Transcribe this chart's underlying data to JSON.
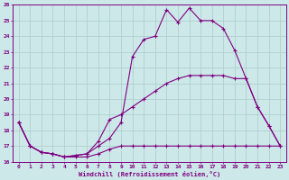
{
  "xlabel": "Windchill (Refroidissement éolien,°C)",
  "background_color": "#cce8e8",
  "line_color": "#800080",
  "grid_color": "#aacccc",
  "xlim": [
    -0.5,
    23.5
  ],
  "ylim": [
    16,
    26
  ],
  "yticks": [
    16,
    17,
    18,
    19,
    20,
    21,
    22,
    23,
    24,
    25,
    26
  ],
  "xticks": [
    0,
    1,
    2,
    3,
    4,
    5,
    6,
    7,
    8,
    9,
    10,
    11,
    12,
    13,
    14,
    15,
    16,
    17,
    18,
    19,
    20,
    21,
    22,
    23
  ],
  "line1_x": [
    0,
    1,
    2,
    3,
    4,
    5,
    6,
    7,
    8,
    9,
    10,
    11,
    12,
    13,
    14,
    15,
    16,
    17,
    18,
    19,
    20,
    21,
    22,
    23
  ],
  "line1_y": [
    18.5,
    17.0,
    16.6,
    16.5,
    16.3,
    16.4,
    16.5,
    17.0,
    17.5,
    18.5,
    22.7,
    23.8,
    24.0,
    25.7,
    24.9,
    25.8,
    25.0,
    25.0,
    24.5,
    23.1,
    21.3,
    19.5,
    18.3,
    17.0
  ],
  "line2_x": [
    0,
    1,
    2,
    3,
    4,
    5,
    6,
    7,
    8,
    9,
    10,
    11,
    12,
    13,
    14,
    15,
    16,
    17,
    18,
    19,
    20,
    21,
    22,
    23
  ],
  "line2_y": [
    18.5,
    17.0,
    16.6,
    16.5,
    16.3,
    16.4,
    16.5,
    17.3,
    18.7,
    19.0,
    19.5,
    20.0,
    20.5,
    21.0,
    21.3,
    21.5,
    21.5,
    21.5,
    21.5,
    21.3,
    21.3,
    19.5,
    18.3,
    17.0
  ],
  "line3_x": [
    0,
    1,
    2,
    3,
    4,
    5,
    6,
    7,
    8,
    9,
    10,
    11,
    12,
    13,
    14,
    15,
    16,
    17,
    18,
    19,
    20,
    21,
    22,
    23
  ],
  "line3_y": [
    18.5,
    17.0,
    16.6,
    16.5,
    16.3,
    16.3,
    16.3,
    16.5,
    16.8,
    17.0,
    17.0,
    17.0,
    17.0,
    17.0,
    17.0,
    17.0,
    17.0,
    17.0,
    17.0,
    17.0,
    17.0,
    17.0,
    17.0,
    17.0
  ]
}
